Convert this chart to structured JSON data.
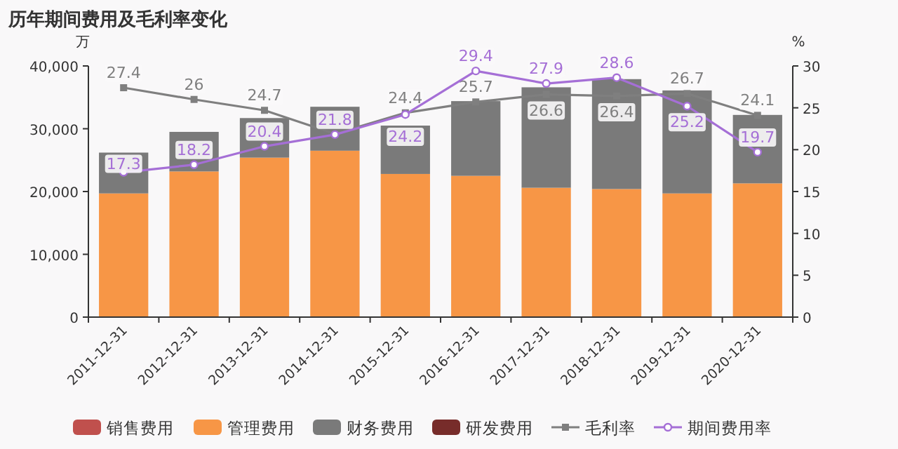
{
  "chart_data": {
    "type": "bar",
    "title": "历年期间费用及毛利率变化",
    "ylabel": "万",
    "y2label": "%",
    "stacked": true,
    "grid": false,
    "legend": "bottom",
    "categories": [
      "2011-12-31",
      "2012-12-31",
      "2013-12-31",
      "2014-12-31",
      "2015-12-31",
      "2016-12-31",
      "2017-12-31",
      "2018-12-31",
      "2019-12-31",
      "2020-12-31"
    ],
    "ylim": [
      0,
      40000
    ],
    "yticks": [
      0,
      {
        "value": 10000,
        "label": "10,000"
      },
      {
        "value": 20000,
        "label": "20,000"
      },
      {
        "value": 30000,
        "label": "30,000"
      },
      {
        "value": 40000,
        "label": "40,000"
      }
    ],
    "y2lim": [
      0,
      30
    ],
    "y2ticks": [
      0,
      5,
      10,
      15,
      20,
      25,
      30
    ],
    "series": [
      {
        "name": "销售费用",
        "type": "bar",
        "color": "#c0504d",
        "values": [
          null,
          null,
          null,
          null,
          null,
          null,
          null,
          null,
          null,
          null
        ]
      },
      {
        "name": "管理费用",
        "type": "bar",
        "color": "#f79646",
        "values": [
          19700,
          23200,
          25400,
          26500,
          22800,
          22500,
          20600,
          20400,
          19700,
          21300
        ]
      },
      {
        "name": "财务费用",
        "type": "bar",
        "color": "#7a7a7a",
        "values": [
          6500,
          6300,
          6300,
          7000,
          7700,
          11900,
          16000,
          17500,
          16400,
          10900
        ]
      },
      {
        "name": "研发费用",
        "type": "bar",
        "color": "#772c2a",
        "values": [
          null,
          null,
          null,
          null,
          null,
          null,
          null,
          null,
          null,
          null
        ]
      },
      {
        "name": "毛利率",
        "type": "line",
        "axis": "y2",
        "marker": "square",
        "color": "#7f7f7f",
        "values": [
          27.4,
          26,
          24.7,
          21.9,
          24.4,
          25.7,
          26.6,
          26.4,
          26.7,
          24.1
        ],
        "value_labels": [
          "27.4",
          "26",
          "24.7",
          null,
          "24.4",
          "25.7",
          "26.6",
          "26.4",
          "26.7",
          "24.1"
        ]
      },
      {
        "name": "期间费用率",
        "type": "line",
        "axis": "y2",
        "marker": "circle",
        "color": "#a56fd6",
        "values": [
          17.3,
          18.2,
          20.4,
          21.8,
          24.2,
          29.4,
          27.9,
          28.6,
          25.2,
          19.7
        ],
        "value_labels": [
          "17.3",
          "18.2",
          "20.4",
          "21.8",
          "24.2",
          "29.4",
          "27.9",
          "28.6",
          "25.2",
          "19.7"
        ]
      }
    ]
  }
}
